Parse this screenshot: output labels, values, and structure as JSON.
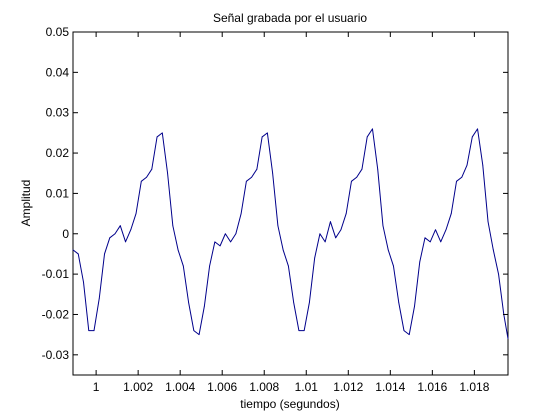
{
  "chart_data": {
    "type": "line",
    "title": "Señal grabada por el usuario",
    "xlabel": "tiempo (segundos)",
    "ylabel": "Amplitud",
    "xlim": [
      0.9989,
      1.0196
    ],
    "ylim": [
      -0.035,
      0.05
    ],
    "grid": false,
    "x_ticks": [
      1,
      1.002,
      1.004,
      1.006,
      1.008,
      1.01,
      1.012,
      1.014,
      1.016,
      1.018
    ],
    "x_tick_labels": [
      "1",
      "1.002",
      "1.004",
      "1.006",
      "1.008",
      "1.01",
      "1.012",
      "1.014",
      "1.016",
      "1.018"
    ],
    "y_ticks": [
      -0.03,
      -0.02,
      -0.01,
      0,
      0.01,
      0.02,
      0.03,
      0.04,
      0.05
    ],
    "y_tick_labels": [
      "-0.03",
      "-0.02",
      "-0.01",
      "0",
      "0.01",
      "0.02",
      "0.03",
      "0.04",
      "0.05"
    ],
    "series": [
      {
        "color": "#00008b",
        "x": [
          0.9989,
          0.99915,
          0.9994,
          0.99965,
          0.9999,
          1.00015,
          1.0004,
          1.00065,
          1.0009,
          1.00115,
          1.0014,
          1.00165,
          1.0019,
          1.00215,
          1.0024,
          1.00265,
          1.0029,
          1.00315,
          1.0034,
          1.00365,
          1.0039,
          1.00415,
          1.0044,
          1.00465,
          1.0049,
          1.00515,
          1.0054,
          1.00565,
          1.0059,
          1.00615,
          1.0064,
          1.00665,
          1.0069,
          1.00715,
          1.0074,
          1.00765,
          1.0079,
          1.00815,
          1.0084,
          1.00865,
          1.0089,
          1.00915,
          1.0094,
          1.00965,
          1.0099,
          1.01015,
          1.0104,
          1.01065,
          1.0109,
          1.01115,
          1.0114,
          1.01165,
          1.0119,
          1.01215,
          1.0124,
          1.01265,
          1.0129,
          1.01315,
          1.0134,
          1.01365,
          1.0139,
          1.01415,
          1.0144,
          1.01465,
          1.0149,
          1.01515,
          1.0154,
          1.01565,
          1.0159,
          1.01615,
          1.0164,
          1.01665,
          1.0169,
          1.01715,
          1.0174,
          1.01765,
          1.0179,
          1.01815,
          1.0184,
          1.01865,
          1.0189,
          1.01915,
          1.0194,
          1.0196
        ],
        "y": [
          -0.004,
          -0.005,
          -0.012,
          -0.024,
          -0.024,
          -0.016,
          -0.005,
          -0.001,
          0,
          0.002,
          -0.002,
          0.001,
          0.005,
          0.013,
          0.014,
          0.016,
          0.024,
          0.025,
          0.015,
          0.002,
          -0.004,
          -0.008,
          -0.017,
          -0.024,
          -0.025,
          -0.018,
          -0.008,
          -0.002,
          -0.003,
          0,
          -0.002,
          0,
          0.005,
          0.013,
          0.014,
          0.016,
          0.024,
          0.025,
          0.015,
          0.002,
          -0.004,
          -0.008,
          -0.017,
          -0.024,
          -0.024,
          -0.017,
          -0.006,
          0,
          -0.002,
          0.003,
          -0.001,
          0.001,
          0.005,
          0.013,
          0.014,
          0.016,
          0.024,
          0.026,
          0.016,
          0.002,
          -0.004,
          -0.008,
          -0.017,
          -0.024,
          -0.025,
          -0.018,
          -0.007,
          -0.001,
          -0.002,
          0.001,
          -0.002,
          0.001,
          0.005,
          0.013,
          0.014,
          0.017,
          0.024,
          0.026,
          0.017,
          0.003,
          -0.004,
          -0.01,
          -0.02,
          -0.026
        ]
      }
    ]
  }
}
